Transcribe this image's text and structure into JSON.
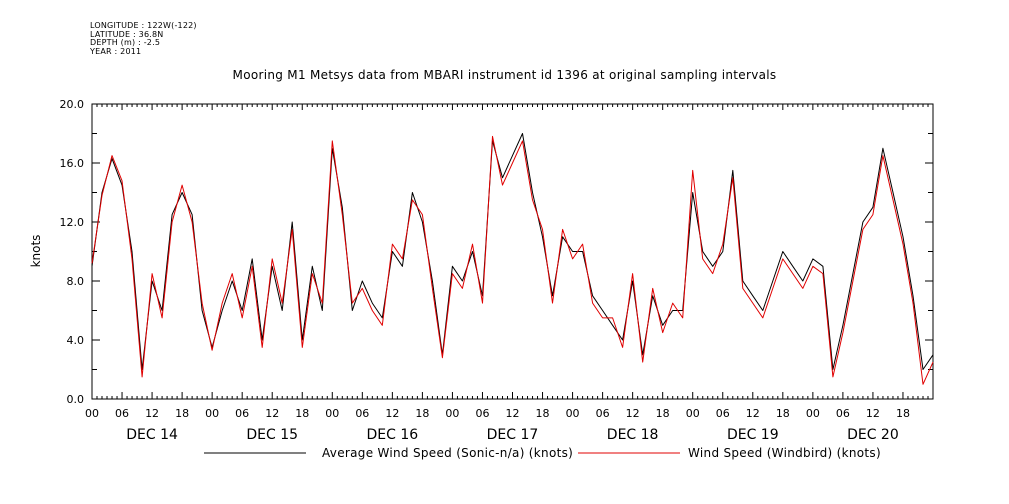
{
  "meta": {
    "longitude": "LONGITUDE : 122W(-122)",
    "latitude": "LATITUDE : 36.8N",
    "depth": "DEPTH (m) : -2.5",
    "year": "YEAR : 2011"
  },
  "chart_data": {
    "type": "line",
    "title": "Mooring M1 Metsys data from MBARI instrument id 1396 at original sampling intervals",
    "ylabel": "knots",
    "xlabel": "",
    "ylim": [
      0,
      20
    ],
    "xlim_hours": [
      0,
      168
    ],
    "y_ticks": [
      "0.0",
      "4.0",
      "8.0",
      "12.0",
      "16.0",
      "20.0"
    ],
    "x_tick_labels": [
      "00",
      "06",
      "12",
      "18",
      "00",
      "06",
      "12",
      "18",
      "00",
      "06",
      "12",
      "18",
      "00",
      "06",
      "12",
      "18",
      "00",
      "06",
      "12",
      "18",
      "00",
      "06",
      "12",
      "18",
      "00",
      "06",
      "12",
      "18"
    ],
    "day_labels": [
      "DEC 14",
      "DEC 15",
      "DEC 16",
      "DEC 17",
      "DEC 18",
      "DEC 19",
      "DEC 20"
    ],
    "grid": false,
    "legend_position": "bottom",
    "series": [
      {
        "name": "Average Wind Speed (Sonic-n/a) (knots)",
        "color": "#000000",
        "x": [
          0,
          2,
          4,
          6,
          8,
          10,
          12,
          14,
          16,
          18,
          20,
          22,
          24,
          26,
          28,
          30,
          32,
          34,
          36,
          38,
          40,
          42,
          44,
          46,
          48,
          50,
          52,
          54,
          56,
          58,
          60,
          62,
          64,
          66,
          68,
          70,
          72,
          74,
          76,
          78,
          80,
          82,
          84,
          86,
          88,
          90,
          92,
          94,
          96,
          98,
          100,
          102,
          104,
          106,
          108,
          110,
          112,
          114,
          116,
          118,
          120,
          122,
          124,
          126,
          128,
          130,
          132,
          134,
          136,
          138,
          140,
          142,
          144,
          146,
          148,
          150,
          152,
          154,
          156,
          158,
          160,
          162,
          164,
          166,
          168
        ],
        "y": [
          9.0,
          14.0,
          16.3,
          14.5,
          10.0,
          2.0,
          8.0,
          6.0,
          12.5,
          14.0,
          12.5,
          6.0,
          3.5,
          6.0,
          8.0,
          6.0,
          9.5,
          4.0,
          9.0,
          6.0,
          12.0,
          4.0,
          9.0,
          6.0,
          17.0,
          13.0,
          6.0,
          8.0,
          6.5,
          5.5,
          10.0,
          9.0,
          14.0,
          12.0,
          8.0,
          3.0,
          9.0,
          8.0,
          10.0,
          7.0,
          17.5,
          15.0,
          16.5,
          18.0,
          14.0,
          11.0,
          7.0,
          11.0,
          10.0,
          10.0,
          7.0,
          6.0,
          5.0,
          4.0,
          8.0,
          3.0,
          7.0,
          5.0,
          6.0,
          6.0,
          14.0,
          10.0,
          9.0,
          10.0,
          15.5,
          8.0,
          7.0,
          6.0,
          8.0,
          10.0,
          9.0,
          8.0,
          9.5,
          9.0,
          2.0,
          5.0,
          8.5,
          12.0,
          13.0,
          17.0,
          14.0,
          11.0,
          7.0,
          2.0,
          3.0
        ]
      },
      {
        "name": "Wind Speed (Windbird) (knots)",
        "color": "#e00000",
        "x": [
          0,
          2,
          4,
          6,
          8,
          10,
          12,
          14,
          16,
          18,
          20,
          22,
          24,
          26,
          28,
          30,
          32,
          34,
          36,
          38,
          40,
          42,
          44,
          46,
          48,
          50,
          52,
          54,
          56,
          58,
          60,
          62,
          64,
          66,
          68,
          70,
          72,
          74,
          76,
          78,
          80,
          82,
          84,
          86,
          88,
          90,
          92,
          94,
          96,
          98,
          100,
          102,
          104,
          106,
          108,
          110,
          112,
          114,
          116,
          118,
          120,
          122,
          124,
          126,
          128,
          130,
          132,
          134,
          136,
          138,
          140,
          142,
          144,
          146,
          148,
          150,
          152,
          154,
          156,
          158,
          160,
          162,
          164,
          166,
          168
        ],
        "y": [
          9.2,
          13.8,
          16.5,
          14.8,
          9.5,
          1.5,
          8.5,
          5.5,
          12.0,
          14.5,
          12.0,
          6.5,
          3.3,
          6.5,
          8.5,
          5.5,
          9.0,
          3.5,
          9.5,
          6.5,
          11.5,
          3.5,
          8.5,
          6.5,
          17.5,
          12.5,
          6.5,
          7.5,
          6.0,
          5.0,
          10.5,
          9.5,
          13.5,
          12.5,
          7.5,
          2.8,
          8.5,
          7.5,
          10.5,
          6.5,
          17.8,
          14.5,
          16.0,
          17.5,
          13.5,
          11.5,
          6.5,
          11.5,
          9.5,
          10.5,
          6.5,
          5.5,
          5.5,
          3.5,
          8.5,
          2.5,
          7.5,
          4.5,
          6.5,
          5.5,
          15.5,
          9.5,
          8.5,
          10.5,
          15.0,
          7.5,
          6.5,
          5.5,
          7.5,
          9.5,
          8.5,
          7.5,
          9.0,
          8.5,
          1.5,
          4.5,
          8.0,
          11.5,
          12.5,
          16.5,
          13.5,
          10.5,
          6.5,
          1.0,
          2.5
        ]
      }
    ]
  },
  "legend": {
    "label_black": "Average Wind Speed (Sonic-n/a) (knots)",
    "label_red": "Wind Speed (Windbird) (knots)"
  }
}
